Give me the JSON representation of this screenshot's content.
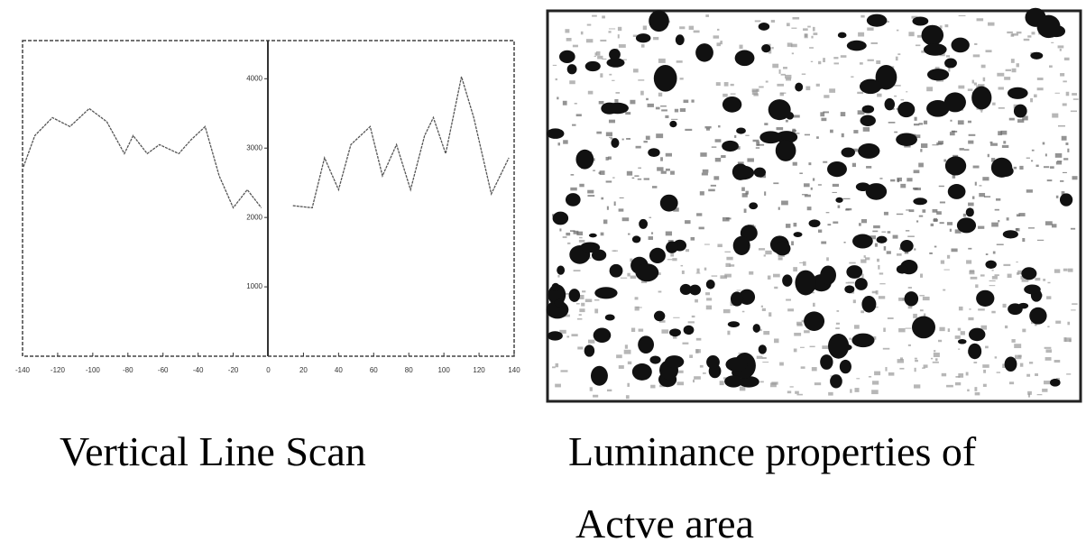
{
  "chart_data": {
    "type": "line",
    "x": [
      -139.5,
      -133,
      -123,
      -113,
      -102,
      -92,
      -82,
      -77,
      -69,
      -62,
      -51,
      -44,
      -36,
      -28,
      -20,
      -12,
      -4,
      5,
      14,
      25,
      32,
      40,
      47,
      58,
      65,
      73,
      81,
      89,
      94,
      101,
      110,
      117,
      127,
      137
    ],
    "series": [
      {
        "color": "#555555",
        "values": [
          2730,
          3180,
          3440,
          3310,
          3570,
          3380,
          2920,
          3180,
          2920,
          3050,
          2920,
          3120,
          3310,
          2600,
          2140,
          2400,
          2140,
          null,
          2170,
          2140,
          2860,
          2400,
          3050,
          3310,
          2600,
          3050,
          2400,
          3180,
          3440,
          2920,
          4030,
          3440,
          2340,
          2860
        ]
      }
    ],
    "xlim": [
      -140,
      140
    ],
    "xticks": [
      -140,
      -120,
      -100,
      -80,
      -60,
      -40,
      -20,
      0,
      20,
      40,
      60,
      80,
      100,
      120,
      140
    ],
    "ylim": [
      0,
      4550
    ],
    "yticks": [
      1000,
      2000,
      3000,
      4000
    ]
  },
  "captions": [
    "Vertical Line Scan",
    "Luminance properties of",
    "Actve area"
  ]
}
